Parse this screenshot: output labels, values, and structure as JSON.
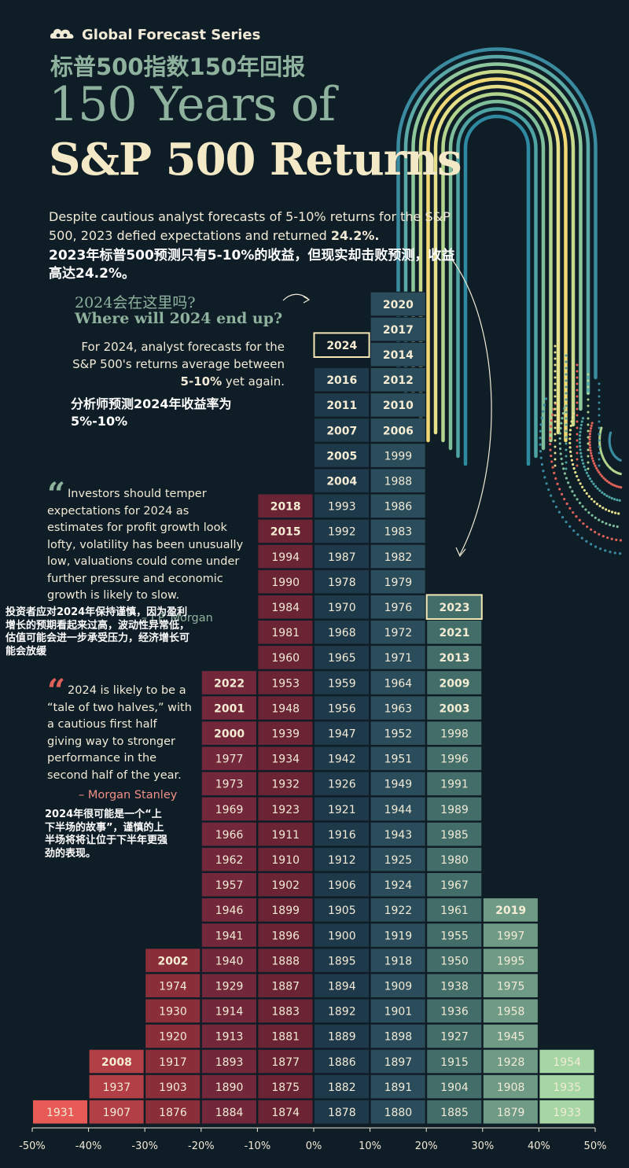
{
  "header": {
    "brand": "Global Forecast Series",
    "title_zh": "标普500指数150年回报",
    "title_line1": "150 Years of",
    "title_line2": "S&P 500 Returns"
  },
  "intro": {
    "text_before": "Despite cautious analyst forecasts of 5-10% returns for the S&P 500, 2023 defied expectations and returned ",
    "highlight": "24.2%.",
    "text_zh": "2023年标普500预测只有5-10%的收益，但现实却击败预测，收益高达24.2%。"
  },
  "question": {
    "zh": "2024会在这里吗?",
    "en": "Where will 2024 end up?"
  },
  "forecast": {
    "text_before": "For 2024, analyst forecasts for the S&P 500's returns average between ",
    "highlight": "5-10%",
    "text_after": " yet again.",
    "text_zh": "分析师预测2024年收益率为5%-10%"
  },
  "quotes": [
    {
      "text": "Investors should temper expectations for 2024 as estimates for profit growth look lofty, volatility has been unusually low, valuations could come under further pressure and economic growth is likely to slow.",
      "source": "– J.P. Morgan",
      "text_zh": "投资者应对2024年保持谨慎，因为盈利增长的预期看起来过高，波动性异常低，估值可能会进一步承受压力，经济增长可能会放缓"
    },
    {
      "text": "2024 is likely to be a “tale of two halves,” with a cautious first half giving way to stronger performance in the second half of the year.",
      "source": "– Morgan Stanley",
      "text_zh": "2024年很可能是一个“上下半场的故事”，谨慎的上半场将将让位于下半年更强劲的表现。"
    }
  ],
  "colors": {
    "background": "#0f1d27",
    "negative_bins": [
      "#e75a55",
      "#b23f46",
      "#8a2e3a",
      "#72283a",
      "#6a2434"
    ],
    "positive_bins": [
      "#1e3a4a",
      "#2b4c5a",
      "#426d69",
      "#6e9a86",
      "#a5d6a4"
    ],
    "highlight_border": "#f3e7b5",
    "bold_year_text": "#f5ecd4",
    "year_text": "#f1ead6"
  },
  "chart_data": {
    "type": "histogram",
    "title": "150 Years of S&P 500 Returns",
    "xlabel": "",
    "ylabel": "",
    "x_unit": "%",
    "xlim": [
      -50,
      50
    ],
    "ticks": [
      "-50%",
      "-40%",
      "-30%",
      "-20%",
      "-10%",
      "0%",
      "10%",
      "20%",
      "30%",
      "40%",
      "50%"
    ],
    "bins": [
      {
        "range": [
          -50,
          -40
        ],
        "years": [
          "1931"
        ],
        "bold": []
      },
      {
        "range": [
          -40,
          -30
        ],
        "years": [
          "1907",
          "1937",
          "2008"
        ],
        "bold": [
          "2008"
        ]
      },
      {
        "range": [
          -30,
          -20
        ],
        "years": [
          "1876",
          "1903",
          "1917",
          "1920",
          "1930",
          "1974",
          "2002"
        ],
        "bold": [
          "2002"
        ]
      },
      {
        "range": [
          -20,
          -10
        ],
        "years": [
          "1884",
          "1890",
          "1893",
          "1913",
          "1914",
          "1929",
          "1940",
          "1941",
          "1946",
          "1957",
          "1962",
          "1966",
          "1969",
          "1973",
          "1977",
          "2000",
          "2001",
          "2022"
        ],
        "bold": [
          "2000",
          "2001",
          "2022"
        ]
      },
      {
        "range": [
          -10,
          0
        ],
        "years": [
          "1874",
          "1875",
          "1877",
          "1881",
          "1883",
          "1887",
          "1888",
          "1896",
          "1899",
          "1902",
          "1910",
          "1911",
          "1923",
          "1932",
          "1934",
          "1939",
          "1948",
          "1953",
          "1960",
          "1981",
          "1984",
          "1990",
          "1994",
          "2015",
          "2018"
        ],
        "bold": [
          "2015",
          "2018"
        ]
      },
      {
        "range": [
          0,
          10
        ],
        "years": [
          "1878",
          "1882",
          "1886",
          "1889",
          "1892",
          "1894",
          "1895",
          "1900",
          "1905",
          "1906",
          "1912",
          "1916",
          "1921",
          "1926",
          "1942",
          "1947",
          "1956",
          "1959",
          "1965",
          "1968",
          "1970",
          "1978",
          "1987",
          "1992",
          "1993",
          "2004",
          "2005",
          "2007",
          "2011",
          "2016"
        ],
        "bold": [
          "2004",
          "2005",
          "2007",
          "2011",
          "2016"
        ]
      },
      {
        "range": [
          10,
          20
        ],
        "years": [
          "1880",
          "1891",
          "1897",
          "1898",
          "1901",
          "1909",
          "1918",
          "1919",
          "1922",
          "1924",
          "1925",
          "1943",
          "1944",
          "1949",
          "1951",
          "1952",
          "1963",
          "1964",
          "1971",
          "1972",
          "1976",
          "1979",
          "1982",
          "1983",
          "1986",
          "1988",
          "1999",
          "2006",
          "2010",
          "2012",
          "2014",
          "2017",
          "2020"
        ],
        "bold": [
          "2006",
          "2010",
          "2012",
          "2014",
          "2017",
          "2020"
        ]
      },
      {
        "range": [
          20,
          30
        ],
        "years": [
          "1885",
          "1904",
          "1915",
          "1927",
          "1936",
          "1938",
          "1950",
          "1955",
          "1961",
          "1967",
          "1980",
          "1985",
          "1989",
          "1991",
          "1996",
          "1998",
          "2003",
          "2009",
          "2013",
          "2021",
          "2023"
        ],
        "bold": [
          "2003",
          "2009",
          "2013",
          "2021",
          "2023"
        ]
      },
      {
        "range": [
          30,
          40
        ],
        "years": [
          "1879",
          "1908",
          "1928",
          "1945",
          "1958",
          "1975",
          "1995",
          "1997",
          "2019"
        ],
        "bold": [
          "2019"
        ]
      },
      {
        "range": [
          40,
          50
        ],
        "years": [
          "1933",
          "1935",
          "1954"
        ],
        "bold": []
      }
    ],
    "highlighted": [
      {
        "year": "2023",
        "bin": [
          20,
          30
        ],
        "note": "actual"
      },
      {
        "year": "2024",
        "bin": [
          0,
          10
        ],
        "note": "question"
      }
    ]
  }
}
